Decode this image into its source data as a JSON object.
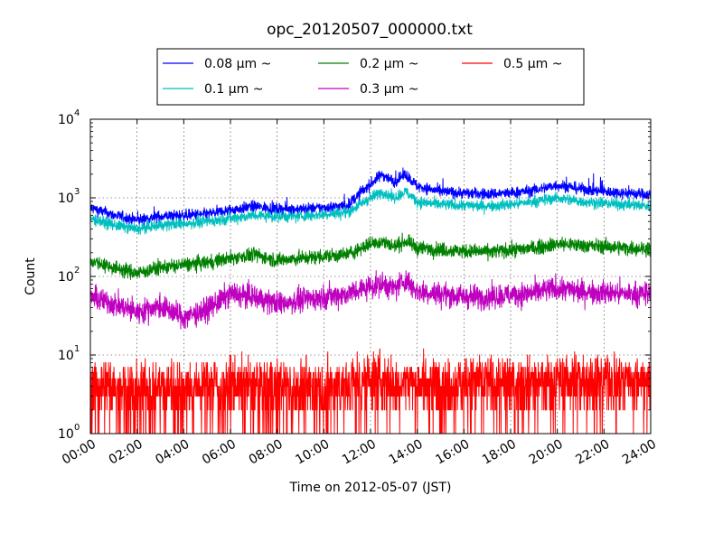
{
  "chart_data": {
    "type": "line",
    "title": "opc_20120507_000000.txt",
    "xlabel": "Time on 2012-05-07 (JST)",
    "ylabel": "Count",
    "xlim": [
      "00:00",
      "24:00"
    ],
    "xticks": [
      "00:00",
      "02:00",
      "04:00",
      "06:00",
      "08:00",
      "10:00",
      "12:00",
      "14:00",
      "16:00",
      "18:00",
      "20:00",
      "22:00",
      "24:00"
    ],
    "yscale": "log",
    "ylim": [
      1,
      10000
    ],
    "yticks": [
      {
        "base": "10",
        "exp": "0"
      },
      {
        "base": "10",
        "exp": "1"
      },
      {
        "base": "10",
        "exp": "2"
      },
      {
        "base": "10",
        "exp": "3"
      },
      {
        "base": "10",
        "exp": "4"
      }
    ],
    "grid": true,
    "legend": {
      "placement": "top, above plot",
      "columns": 3
    },
    "x": [
      "00:00",
      "01:00",
      "02:00",
      "03:00",
      "04:00",
      "05:00",
      "06:00",
      "07:00",
      "08:00",
      "09:00",
      "10:00",
      "11:00",
      "12:00",
      "12:30",
      "13:00",
      "13:30",
      "14:00",
      "15:00",
      "16:00",
      "17:00",
      "18:00",
      "19:00",
      "20:00",
      "21:00",
      "22:00",
      "23:00",
      "24:00"
    ],
    "series": [
      {
        "name": "0.08 μm ~",
        "color": "#0000ff",
        "values": [
          750,
          600,
          520,
          580,
          600,
          620,
          700,
          780,
          720,
          720,
          750,
          800,
          1500,
          2000,
          1600,
          2000,
          1400,
          1200,
          1150,
          1120,
          1150,
          1250,
          1450,
          1300,
          1200,
          1150,
          1100
        ]
      },
      {
        "name": "0.1 μm ~",
        "color": "#00bfbf",
        "values": [
          550,
          450,
          400,
          450,
          470,
          500,
          550,
          600,
          580,
          580,
          620,
          650,
          1000,
          1200,
          1000,
          1200,
          900,
          820,
          800,
          790,
          820,
          900,
          1000,
          900,
          850,
          820,
          780
        ]
      },
      {
        "name": "0.2 μm ~",
        "color": "#008000",
        "values": [
          160,
          130,
          110,
          130,
          140,
          150,
          170,
          190,
          160,
          170,
          180,
          190,
          260,
          280,
          240,
          280,
          230,
          220,
          210,
          205,
          215,
          230,
          260,
          250,
          240,
          230,
          225
        ]
      },
      {
        "name": "0.3 μm ~",
        "color": "#bf00bf",
        "values": [
          55,
          45,
          35,
          42,
          30,
          38,
          60,
          55,
          45,
          50,
          55,
          60,
          75,
          80,
          70,
          90,
          65,
          60,
          55,
          55,
          58,
          62,
          70,
          65,
          62,
          60,
          60
        ]
      },
      {
        "name": "0.5 μm ~",
        "color": "#ff0000",
        "values": [
          4,
          4,
          3.5,
          4,
          4,
          4,
          4,
          4,
          4,
          4,
          4,
          4,
          5,
          5,
          4.5,
          5,
          4.5,
          4.5,
          4.5,
          4.5,
          4.5,
          4.5,
          5,
          5,
          5,
          5,
          5
        ]
      }
    ]
  }
}
